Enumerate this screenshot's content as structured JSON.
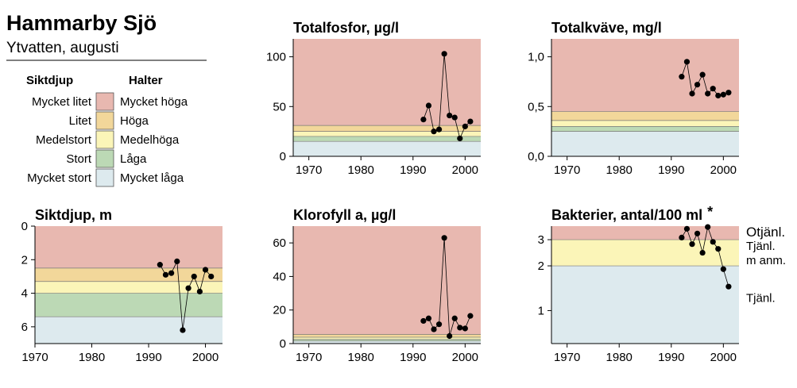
{
  "header": {
    "title": "Hammarby Sjö",
    "subtitle": "Ytvatten, augusti"
  },
  "legend": {
    "left_heading": "Siktdjup",
    "right_heading": "Halter",
    "rows": [
      {
        "left": "Mycket litet",
        "right": "Mycket höga",
        "color": "#e8b8b0"
      },
      {
        "left": "Litet",
        "right": "Höga",
        "color": "#f2d79a"
      },
      {
        "left": "Medelstort",
        "right": "Medelhöga",
        "color": "#fbf5b8"
      },
      {
        "left": "Stort",
        "right": "Låga",
        "color": "#bcd9b5"
      },
      {
        "left": "Mycket stort",
        "right": "Mycket låga",
        "color": "#ddeaee"
      }
    ]
  },
  "chart_data": [
    {
      "id": "fosfor",
      "type": "line",
      "title": "Totalfosfor, µg/l",
      "xlim": [
        1967,
        2003
      ],
      "ylim": [
        0,
        118
      ],
      "xticks": [
        1970,
        1980,
        1990,
        2000
      ],
      "yticks": [
        {
          "v": 0,
          "label": "0"
        },
        {
          "v": 50,
          "label": "50"
        },
        {
          "v": 100,
          "label": "100"
        }
      ],
      "bands": [
        {
          "from": 0,
          "to": 15,
          "color": "#ddeaee"
        },
        {
          "from": 15,
          "to": 20,
          "color": "#bcd9b5"
        },
        {
          "from": 20,
          "to": 25,
          "color": "#fbf5b8"
        },
        {
          "from": 25,
          "to": 31,
          "color": "#f2d79a"
        },
        {
          "from": 31,
          "to": 118,
          "color": "#e8b8b0"
        }
      ],
      "series": [
        {
          "points": [
            [
              1992,
              37
            ],
            [
              1993,
              51
            ],
            [
              1994,
              25
            ],
            [
              1995,
              27
            ],
            [
              1996,
              103
            ],
            [
              1997,
              41
            ],
            [
              1998,
              39
            ],
            [
              1999,
              18
            ],
            [
              2000,
              30
            ],
            [
              2001,
              35
            ]
          ]
        }
      ]
    },
    {
      "id": "kvave",
      "type": "line",
      "title": "Totalkväve, mg/l",
      "xlim": [
        1967,
        2003
      ],
      "ylim": [
        0,
        1.18
      ],
      "xticks": [
        1970,
        1980,
        1990,
        2000
      ],
      "yticks": [
        {
          "v": 0,
          "label": "0,0"
        },
        {
          "v": 0.5,
          "label": "0,5"
        },
        {
          "v": 1.0,
          "label": "1,0"
        }
      ],
      "bands": [
        {
          "from": 0,
          "to": 0.25,
          "color": "#ddeaee"
        },
        {
          "from": 0.25,
          "to": 0.3,
          "color": "#bcd9b5"
        },
        {
          "from": 0.3,
          "to": 0.36,
          "color": "#fbf5b8"
        },
        {
          "from": 0.36,
          "to": 0.45,
          "color": "#f2d79a"
        },
        {
          "from": 0.45,
          "to": 1.18,
          "color": "#e8b8b0"
        }
      ],
      "series": [
        {
          "points": [
            [
              1992,
              0.8
            ],
            [
              1993,
              0.95
            ],
            [
              1994,
              0.63
            ],
            [
              1995,
              0.72
            ],
            [
              1996,
              0.82
            ],
            [
              1997,
              0.63
            ],
            [
              1998,
              0.68
            ],
            [
              1999,
              0.61
            ],
            [
              2000,
              0.62
            ],
            [
              2001,
              0.64
            ]
          ]
        }
      ]
    },
    {
      "id": "siktdjup",
      "type": "line",
      "title": "Siktdjup, m",
      "inverted": true,
      "xlim": [
        1970,
        2003
      ],
      "ylim": [
        0,
        7
      ],
      "xticks": [
        1970,
        1980,
        1990,
        2000
      ],
      "yticks": [
        {
          "v": 0,
          "label": "0"
        },
        {
          "v": 2,
          "label": "2"
        },
        {
          "v": 4,
          "label": "4"
        },
        {
          "v": 6,
          "label": "6"
        }
      ],
      "bands": [
        {
          "from": 0,
          "to": 2.5,
          "color": "#e8b8b0"
        },
        {
          "from": 2.5,
          "to": 3.3,
          "color": "#f2d79a"
        },
        {
          "from": 3.3,
          "to": 4.0,
          "color": "#fbf5b8"
        },
        {
          "from": 4.0,
          "to": 5.4,
          "color": "#bcd9b5"
        },
        {
          "from": 5.4,
          "to": 7,
          "color": "#ddeaee"
        }
      ],
      "series": [
        {
          "points": [
            [
              1992,
              2.3
            ],
            [
              1993,
              2.9
            ],
            [
              1994,
              2.8
            ],
            [
              1995,
              2.1
            ],
            [
              1996,
              6.2
            ],
            [
              1997,
              3.7
            ],
            [
              1998,
              3.0
            ],
            [
              1999,
              3.9
            ],
            [
              2000,
              2.6
            ],
            [
              2001,
              3.0
            ]
          ]
        }
      ]
    },
    {
      "id": "klorofyll",
      "type": "line",
      "title": "Klorofyll a, µg/l",
      "xlim": [
        1967,
        2003
      ],
      "ylim": [
        0,
        70
      ],
      "xticks": [
        1970,
        1980,
        1990,
        2000
      ],
      "yticks": [
        {
          "v": 0,
          "label": "0"
        },
        {
          "v": 20,
          "label": "20"
        },
        {
          "v": 40,
          "label": "40"
        },
        {
          "v": 60,
          "label": "60"
        }
      ],
      "bands": [
        {
          "from": 0,
          "to": 1.5,
          "color": "#ddeaee"
        },
        {
          "from": 1.5,
          "to": 2.5,
          "color": "#bcd9b5"
        },
        {
          "from": 2.5,
          "to": 3.8,
          "color": "#fbf5b8"
        },
        {
          "from": 3.8,
          "to": 5.5,
          "color": "#f2d79a"
        },
        {
          "from": 5.5,
          "to": 70,
          "color": "#e8b8b0"
        }
      ],
      "series": [
        {
          "points": [
            [
              1992,
              13.5
            ],
            [
              1993,
              15
            ],
            [
              1994,
              8.5
            ],
            [
              1995,
              11.5
            ],
            [
              1996,
              63
            ],
            [
              1997,
              4.5
            ],
            [
              1998,
              15
            ],
            [
              1999,
              9.5
            ],
            [
              2000,
              9
            ],
            [
              2001,
              16.5
            ]
          ]
        }
      ]
    },
    {
      "id": "bakterier",
      "type": "line",
      "title": "Bakterier, antal/100 ml",
      "title_suffix": "*",
      "log": true,
      "xlim": [
        1967,
        2003
      ],
      "ylim": [
        0.6,
        3.7
      ],
      "xticks": [
        1970,
        1980,
        1990,
        2000
      ],
      "yticks": [
        {
          "v": 1,
          "label": "1"
        },
        {
          "v": 2,
          "label": "2"
        },
        {
          "v": 3,
          "label": "3"
        }
      ],
      "bands": [
        {
          "from": 0.6,
          "to": 2.0,
          "color": "#ddeaee"
        },
        {
          "from": 2.0,
          "to": 3.0,
          "color": "#fbf5b8"
        },
        {
          "from": 3.0,
          "to": 3.7,
          "color": "#e8b8b0"
        }
      ],
      "zone_labels": [
        "Otjänl.",
        "Tjänl.",
        "m anm.",
        "Tjänl."
      ],
      "series": [
        {
          "points": [
            [
              1992,
              3.1
            ],
            [
              1993,
              3.55
            ],
            [
              1994,
              2.8
            ],
            [
              1995,
              3.3
            ],
            [
              1996,
              2.45
            ],
            [
              1997,
              3.65
            ],
            [
              1998,
              2.9
            ],
            [
              1999,
              2.6
            ],
            [
              2000,
              1.9
            ],
            [
              2001,
              1.45
            ]
          ]
        }
      ]
    }
  ]
}
